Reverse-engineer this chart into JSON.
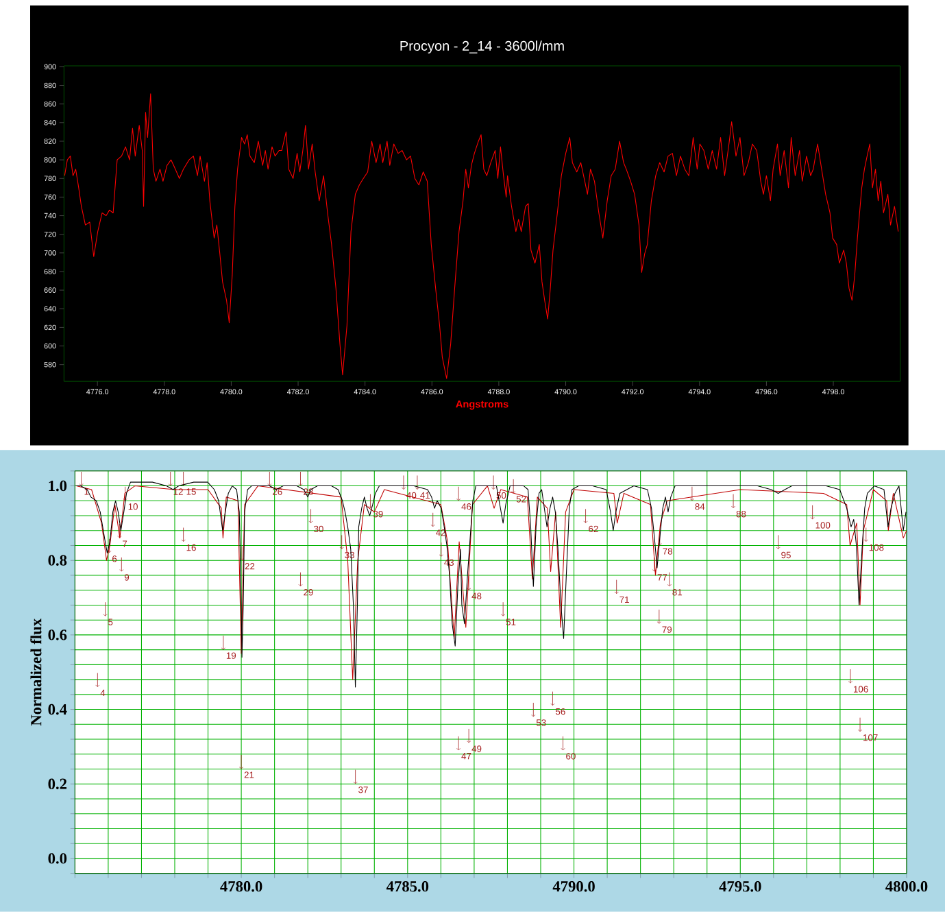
{
  "chart_data": [
    {
      "type": "line",
      "title": "Procyon - 2_14 - 3600l/mm",
      "xlabel": "Angstroms",
      "xlim": [
        4775,
        4800
      ],
      "ylim": [
        562,
        901
      ],
      "xticks": [
        {
          "value": 4776,
          "label": "4776.0"
        },
        {
          "value": 4778,
          "label": "4778.0"
        },
        {
          "value": 4780,
          "label": "4780.0"
        },
        {
          "value": 4782,
          "label": "4782.0"
        },
        {
          "value": 4784,
          "label": "4784.0"
        },
        {
          "value": 4786,
          "label": "4786.0"
        },
        {
          "value": 4788,
          "label": "4788.0"
        },
        {
          "value": 4790,
          "label": "4790.0"
        },
        {
          "value": 4792,
          "label": "4792.0"
        },
        {
          "value": 4794,
          "label": "4794.0"
        },
        {
          "value": 4796,
          "label": "4796.0"
        },
        {
          "value": 4798,
          "label": "4798.0"
        }
      ],
      "yticks": [
        580,
        600,
        620,
        640,
        660,
        680,
        700,
        720,
        740,
        760,
        780,
        800,
        820,
        840,
        860,
        880,
        900
      ],
      "series": [
        {
          "color": "#ff0000",
          "x": [
            4775.02,
            4775.1,
            4775.19,
            4775.27,
            4775.35,
            4775.44,
            4775.52,
            4775.64,
            4775.77,
            4775.89,
            4776.01,
            4776.14,
            4776.26,
            4776.36,
            4776.47,
            4776.59,
            4776.72,
            4776.84,
            4776.96,
            4777.05,
            4777.13,
            4777.25,
            4777.34,
            4777.38,
            4777.44,
            4777.5,
            4777.59,
            4777.67,
            4777.75,
            4777.87,
            4777.96,
            4778.08,
            4778.2,
            4778.33,
            4778.45,
            4778.57,
            4778.74,
            4778.87,
            4778.99,
            4779.07,
            4779.2,
            4779.28,
            4779.36,
            4779.49,
            4779.57,
            4779.66,
            4779.74,
            4779.86,
            4779.94,
            4780.03,
            4780.11,
            4780.19,
            4780.31,
            4780.4,
            4780.48,
            4780.56,
            4780.69,
            4780.81,
            4780.94,
            4781.02,
            4781.1,
            4781.22,
            4781.31,
            4781.43,
            4781.51,
            4781.64,
            4781.72,
            4781.85,
            4781.97,
            4782.05,
            4782.14,
            4782.22,
            4782.31,
            4782.42,
            4782.51,
            4782.63,
            4782.76,
            4782.88,
            4783.0,
            4783.13,
            4783.25,
            4783.33,
            4783.46,
            4783.58,
            4783.71,
            4783.83,
            4783.95,
            4784.08,
            4784.2,
            4784.33,
            4784.45,
            4784.53,
            4784.66,
            4784.74,
            4784.86,
            4784.99,
            4785.11,
            4785.24,
            4785.36,
            4785.49,
            4785.61,
            4785.74,
            4785.86,
            4785.98,
            4786.11,
            4786.23,
            4786.31,
            4786.44,
            4786.56,
            4786.68,
            4786.81,
            4786.93,
            4787.01,
            4787.09,
            4787.18,
            4787.27,
            4787.39,
            4787.47,
            4787.55,
            4787.64,
            4787.76,
            4787.89,
            4787.97,
            4788.05,
            4788.14,
            4788.22,
            4788.26,
            4788.38,
            4788.51,
            4788.59,
            4788.67,
            4788.8,
            4788.88,
            4788.96,
            4789.08,
            4789.21,
            4789.29,
            4789.37,
            4789.46,
            4789.54,
            4789.62,
            4789.75,
            4789.87,
            4790.0,
            4790.12,
            4790.2,
            4790.33,
            4790.45,
            4790.57,
            4790.65,
            4790.74,
            4790.86,
            4790.99,
            4791.11,
            4791.24,
            4791.36,
            4791.48,
            4791.61,
            4791.73,
            4791.81,
            4791.94,
            4792.06,
            4792.19,
            4792.27,
            4792.36,
            4792.44,
            4792.56,
            4792.69,
            4792.81,
            4792.94,
            4793.06,
            4793.19,
            4793.31,
            4793.43,
            4793.56,
            4793.68,
            4793.81,
            4793.93,
            4794.01,
            4794.13,
            4794.26,
            4794.38,
            4794.51,
            4794.63,
            4794.75,
            4794.88,
            4794.96,
            4795.09,
            4795.21,
            4795.33,
            4795.46,
            4795.58,
            4795.71,
            4795.83,
            4795.91,
            4796.0,
            4796.12,
            4796.2,
            4796.33,
            4796.41,
            4796.53,
            4796.66,
            4796.74,
            4796.86,
            4796.99,
            4797.07,
            4797.2,
            4797.32,
            4797.4,
            4797.53,
            4797.65,
            4797.77,
            4797.9,
            4797.98,
            4798.1,
            4798.18,
            4798.31,
            4798.39,
            4798.47,
            4798.56,
            4798.64,
            4798.72,
            4798.85,
            4798.93,
            4799.01,
            4799.09,
            4799.17,
            4799.26,
            4799.34,
            4799.42,
            4799.5,
            4799.63,
            4799.71,
            4799.83,
            4799.94
          ],
          "values": [
            783,
            800,
            804,
            783,
            790,
            770,
            750,
            730,
            733,
            696,
            723,
            743,
            740,
            746,
            743,
            800,
            804,
            814,
            800,
            834,
            804,
            837,
            810,
            750,
            851,
            824,
            871,
            790,
            777,
            790,
            777,
            794,
            800,
            790,
            780,
            790,
            800,
            804,
            783,
            804,
            777,
            797,
            756,
            716,
            730,
            699,
            669,
            649,
            625,
            676,
            750,
            790,
            824,
            817,
            827,
            804,
            797,
            820,
            794,
            810,
            790,
            814,
            804,
            810,
            810,
            830,
            790,
            780,
            807,
            787,
            810,
            837,
            790,
            817,
            787,
            756,
            783,
            743,
            709,
            662,
            602,
            569,
            622,
            723,
            763,
            773,
            780,
            787,
            820,
            797,
            817,
            797,
            820,
            794,
            817,
            807,
            810,
            800,
            804,
            780,
            773,
            787,
            777,
            709,
            662,
            622,
            588,
            565,
            602,
            662,
            723,
            756,
            790,
            770,
            794,
            807,
            820,
            827,
            790,
            783,
            797,
            810,
            780,
            814,
            783,
            760,
            783,
            750,
            723,
            736,
            723,
            750,
            753,
            703,
            689,
            709,
            669,
            649,
            629,
            662,
            703,
            743,
            783,
            807,
            824,
            797,
            787,
            797,
            777,
            763,
            790,
            777,
            743,
            716,
            756,
            783,
            790,
            820,
            797,
            790,
            777,
            763,
            730,
            679,
            699,
            709,
            756,
            783,
            797,
            787,
            804,
            807,
            783,
            804,
            790,
            783,
            824,
            790,
            817,
            810,
            790,
            810,
            790,
            824,
            783,
            817,
            841,
            804,
            824,
            783,
            797,
            817,
            810,
            777,
            763,
            783,
            756,
            790,
            817,
            783,
            810,
            770,
            824,
            783,
            810,
            777,
            804,
            783,
            790,
            817,
            790,
            763,
            743,
            716,
            709,
            689,
            703,
            689,
            662,
            649,
            676,
            716,
            770,
            790,
            804,
            817,
            770,
            790,
            756,
            777,
            743,
            763,
            730,
            750,
            723
          ]
        }
      ]
    },
    {
      "type": "line",
      "ylabel": "Normalized flux",
      "grid": true,
      "xlim": [
        4775,
        4800
      ],
      "ylim": [
        -0.04,
        1.04
      ],
      "xticks": [
        {
          "value": 4775,
          "label": null
        },
        {
          "value": 4776,
          "label": null
        },
        {
          "value": 4777,
          "label": null
        },
        {
          "value": 4778,
          "label": null
        },
        {
          "value": 4779,
          "label": null
        },
        {
          "value": 4780,
          "label": "4780.0"
        },
        {
          "value": 4781,
          "label": null
        },
        {
          "value": 4782,
          "label": null
        },
        {
          "value": 4783,
          "label": null
        },
        {
          "value": 4784,
          "label": null
        },
        {
          "value": 4785,
          "label": "4785.0"
        },
        {
          "value": 4786,
          "label": null
        },
        {
          "value": 4787,
          "label": null
        },
        {
          "value": 4788,
          "label": null
        },
        {
          "value": 4789,
          "label": null
        },
        {
          "value": 4790,
          "label": "4790.0"
        },
        {
          "value": 4791,
          "label": null
        },
        {
          "value": 4792,
          "label": null
        },
        {
          "value": 4793,
          "label": null
        },
        {
          "value": 4794,
          "label": null
        },
        {
          "value": 4795,
          "label": "4795.0"
        },
        {
          "value": 4796,
          "label": null
        },
        {
          "value": 4797,
          "label": null
        },
        {
          "value": 4798,
          "label": null
        },
        {
          "value": 4799,
          "label": null
        },
        {
          "value": 4800,
          "label": "4800.0"
        }
      ],
      "yticks": [
        {
          "value": -0.04,
          "label": null
        },
        {
          "value": 0,
          "label": "0.0"
        },
        {
          "value": 0.04,
          "label": null
        },
        {
          "value": 0.08,
          "label": null
        },
        {
          "value": 0.12,
          "label": null
        },
        {
          "value": 0.16,
          "label": null
        },
        {
          "value": 0.2,
          "label": "0.2"
        },
        {
          "value": 0.24,
          "label": null
        },
        {
          "value": 0.28,
          "label": null
        },
        {
          "value": 0.32,
          "label": null
        },
        {
          "value": 0.36,
          "label": null
        },
        {
          "value": 0.4,
          "label": "0.4"
        },
        {
          "value": 0.44,
          "label": null
        },
        {
          "value": 0.48,
          "label": null
        },
        {
          "value": 0.52,
          "label": null
        },
        {
          "value": 0.56,
          "label": null
        },
        {
          "value": 0.6,
          "label": "0.6"
        },
        {
          "value": 0.64,
          "label": null
        },
        {
          "value": 0.68,
          "label": null
        },
        {
          "value": 0.72,
          "label": null
        },
        {
          "value": 0.76,
          "label": null
        },
        {
          "value": 0.8,
          "label": "0.8"
        },
        {
          "value": 0.84,
          "label": null
        },
        {
          "value": 0.88,
          "label": null
        },
        {
          "value": 0.92,
          "label": null
        },
        {
          "value": 0.96,
          "label": null
        },
        {
          "value": 1.0,
          "label": "1.0"
        },
        {
          "value": 1.04,
          "label": null
        }
      ],
      "series": [
        {
          "color": "#c00000",
          "x": [
            4775.04,
            4775.5,
            4775.8,
            4775.95,
            4776.05,
            4776.2,
            4776.35,
            4776.5,
            4776.8,
            4778.0,
            4779.0,
            4779.4,
            4779.45,
            4779.55,
            4779.9,
            4780.0,
            4780.1,
            4780.5,
            4783.0,
            4783.2,
            4783.35,
            4783.5,
            4783.7,
            4784.0,
            4784.3,
            4786.0,
            4786.2,
            4786.4,
            4786.55,
            4786.75,
            4786.95,
            4787.4,
            4787.6,
            4787.8,
            4788.6,
            4788.75,
            4788.9,
            4789.2,
            4789.3,
            4789.45,
            4789.6,
            4789.75,
            4790.0,
            4791.2,
            4791.3,
            4791.5,
            4792.3,
            4792.45,
            4792.6,
            4792.8,
            4795.0,
            4797.5,
            4798.2,
            4798.3,
            4798.5,
            4798.6,
            4798.7,
            4799.0,
            4799.4,
            4799.45,
            4799.6,
            4799.9,
            4800.0
          ],
          "values": [
            1.0,
            0.99,
            0.9,
            0.8,
            0.84,
            0.95,
            0.86,
            0.98,
            1.0,
            0.99,
            0.99,
            0.94,
            0.86,
            0.97,
            0.96,
            0.55,
            0.95,
            1.0,
            0.97,
            0.8,
            0.48,
            0.8,
            0.95,
            0.93,
            0.99,
            0.95,
            0.85,
            0.59,
            0.85,
            0.62,
            0.95,
            1.0,
            0.94,
            0.99,
            0.97,
            0.75,
            0.97,
            0.94,
            0.77,
            0.93,
            0.62,
            0.93,
            0.99,
            0.98,
            0.9,
            0.98,
            0.95,
            0.76,
            0.9,
            0.96,
            0.99,
            0.98,
            0.95,
            0.84,
            0.9,
            0.68,
            0.88,
            0.99,
            0.96,
            0.88,
            0.98,
            0.86,
            0.88
          ]
        },
        {
          "color": "#000000",
          "x": [
            4775.04,
            4775.17,
            4775.37,
            4775.48,
            4775.64,
            4775.76,
            4775.89,
            4775.97,
            4776.05,
            4776.14,
            4776.22,
            4776.3,
            4776.38,
            4776.47,
            4776.55,
            4776.67,
            4776.92,
            4777.33,
            4777.75,
            4777.95,
            4778.12,
            4778.57,
            4778.99,
            4779.19,
            4779.32,
            4779.44,
            4779.52,
            4779.61,
            4779.73,
            4779.86,
            4779.94,
            4780.0,
            4780.02,
            4780.06,
            4780.1,
            4780.19,
            4780.31,
            4780.64,
            4780.85,
            4781.05,
            4781.26,
            4781.67,
            4781.88,
            4782.0,
            4782.09,
            4782.29,
            4782.71,
            4782.91,
            4783.04,
            4783.12,
            4783.2,
            4783.29,
            4783.37,
            4783.43,
            4783.49,
            4783.53,
            4783.62,
            4783.7,
            4783.78,
            4783.86,
            4783.95,
            4784.03,
            4784.15,
            4784.36,
            4784.77,
            4785.19,
            4785.6,
            4785.72,
            4785.81,
            4785.89,
            4786.01,
            4786.1,
            4786.18,
            4786.26,
            4786.34,
            4786.43,
            4786.51,
            4786.59,
            4786.63,
            4786.71,
            4786.8,
            4786.88,
            4786.96,
            4787.05,
            4787.25,
            4787.67,
            4787.79,
            4787.87,
            4787.95,
            4788.08,
            4788.49,
            4788.62,
            4788.7,
            4788.78,
            4788.86,
            4788.95,
            4789.03,
            4789.11,
            4789.19,
            4789.28,
            4789.36,
            4789.44,
            4789.52,
            4789.61,
            4789.69,
            4789.77,
            4789.86,
            4789.94,
            4790.14,
            4790.56,
            4790.97,
            4791.1,
            4791.18,
            4791.26,
            4791.38,
            4791.8,
            4792.21,
            4792.33,
            4792.42,
            4792.5,
            4792.58,
            4792.67,
            4792.75,
            4792.83,
            4792.91,
            4793.04,
            4793.45,
            4793.86,
            4794.28,
            4794.69,
            4795.1,
            4795.52,
            4795.93,
            4796.14,
            4796.34,
            4796.55,
            4797.17,
            4797.58,
            4797.99,
            4798.2,
            4798.33,
            4798.41,
            4798.49,
            4798.57,
            4798.66,
            4798.74,
            4798.82,
            4799.03,
            4799.32,
            4799.44,
            4799.53,
            4799.65,
            4799.77,
            4799.9,
            4799.98
          ],
          "values": [
            1.0,
            1.0,
            0.99,
            0.97,
            0.96,
            0.93,
            0.86,
            0.82,
            0.85,
            0.93,
            0.96,
            0.93,
            0.88,
            0.93,
            0.98,
            1.01,
            1.01,
            1.01,
            1.0,
            0.99,
            1.0,
            1.01,
            1.01,
            0.99,
            0.96,
            0.88,
            0.93,
            0.98,
            1.0,
            0.99,
            0.93,
            0.68,
            0.54,
            0.68,
            0.93,
            0.99,
            1.0,
            1.0,
            1.0,
            0.99,
            1.0,
            1.0,
            0.99,
            0.97,
            0.99,
            1.0,
            1.0,
            0.99,
            0.96,
            0.93,
            0.89,
            0.83,
            0.68,
            0.46,
            0.68,
            0.89,
            0.94,
            0.97,
            0.94,
            0.92,
            0.95,
            0.98,
            1.0,
            1.0,
            1.0,
            1.0,
            0.99,
            0.97,
            0.94,
            0.96,
            0.94,
            0.89,
            0.84,
            0.76,
            0.63,
            0.57,
            0.73,
            0.83,
            0.68,
            0.63,
            0.76,
            0.86,
            0.96,
            1.0,
            1.0,
            1.0,
            0.94,
            0.9,
            0.95,
            1.0,
            1.0,
            0.99,
            0.89,
            0.73,
            0.89,
            0.98,
            0.99,
            0.94,
            0.89,
            0.94,
            0.97,
            0.93,
            0.83,
            0.68,
            0.59,
            0.76,
            0.94,
            0.99,
            1.0,
            1.0,
            0.99,
            0.93,
            0.88,
            0.93,
            0.98,
            1.0,
            0.99,
            0.94,
            0.86,
            0.78,
            0.86,
            0.94,
            0.97,
            0.93,
            0.97,
            1.0,
            1.0,
            1.0,
            1.0,
            1.0,
            1.0,
            1.0,
            0.99,
            0.98,
            0.99,
            1.0,
            1.0,
            1.0,
            0.99,
            0.94,
            0.89,
            0.91,
            0.84,
            0.68,
            0.83,
            0.94,
            0.98,
            1.0,
            0.99,
            0.89,
            0.94,
            0.98,
            1.0,
            0.88,
            0.93
          ]
        }
      ],
      "annotations": [
        {
          "text": "1",
          "x": 4775.19,
          "y": 1.0
        },
        "4",
        "5",
        {
          "text": "6",
          "x": 4776.03,
          "y": 0.82
        },
        {
          "text": "7",
          "x": 4776.34,
          "y": 0.86
        },
        "9",
        "10",
        {
          "text": "12",
          "x": 4777.87,
          "y": 1.0
        },
        {
          "text": "15",
          "x": 4778.26,
          "y": 1.0
        },
        "16",
        "19",
        "21",
        {
          "text": "22",
          "x": 4780.02,
          "y": 0.8
        },
        {
          "text": "26",
          "x": 4780.85,
          "y": 1.0
        },
        {
          "text": "28",
          "x": 4781.78,
          "y": 1.0
        },
        "29",
        "30",
        "33",
        "37",
        {
          "text": "39",
          "x": 4783.88,
          "y": 0.94
        },
        "40",
        "41",
        "42",
        "43",
        "46",
        "47",
        {
          "text": "48",
          "x": 4786.84,
          "y": 0.72
        },
        "49",
        "50",
        "51",
        "52",
        "53",
        "56",
        "60",
        "62",
        "71",
        {
          "text": "77",
          "x": 4792.42,
          "y": 0.77
        },
        {
          "text": "78",
          "x": 4792.58,
          "y": 0.84
        },
        "79",
        "81",
        {
          "text": "84",
          "x": 4793.55,
          "y": 0.96
        },
        "88",
        "95",
        "100",
        "106",
        "107",
        {
          "text": "108",
          "x": 4798.78,
          "y": 0.85
        }
      ]
    }
  ]
}
